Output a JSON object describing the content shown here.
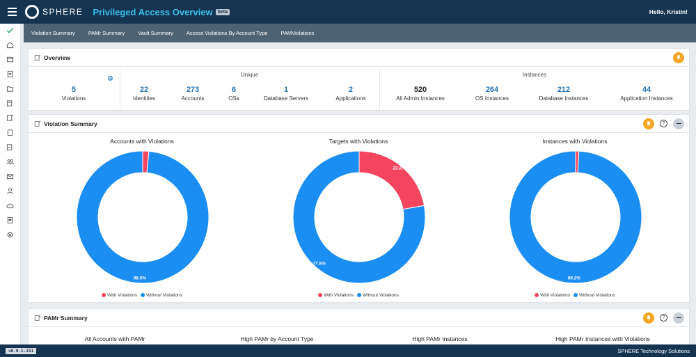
{
  "header": {
    "logo_text": "SPHERE",
    "title": "Privileged Access Overview",
    "badge": "beta",
    "greeting": "Hello, Kristin!"
  },
  "subnav": {
    "items": [
      {
        "label": "Violation Summary"
      },
      {
        "label": "PAMr Summary"
      },
      {
        "label": "Vault Summary"
      },
      {
        "label": "Access Violations By Account Type"
      },
      {
        "label": "PAMViolations"
      }
    ]
  },
  "sidebar": {
    "icons": [
      "check-icon",
      "home-icon",
      "table-icon",
      "document-icon",
      "folder-icon",
      "report-icon",
      "analytics-icon",
      "clipboard-icon",
      "task-icon",
      "users-icon",
      "mail-icon",
      "person-icon",
      "cloud-icon",
      "form-icon",
      "settings-icon"
    ],
    "active_color": "#27ae60"
  },
  "overview": {
    "title": "Overview",
    "violations": {
      "value": "5",
      "label": "Violations"
    },
    "unique": {
      "label": "Unique",
      "stats": [
        {
          "value": "22",
          "label": "Identities"
        },
        {
          "value": "273",
          "label": "Accounts"
        },
        {
          "value": "6",
          "label": "OSs"
        },
        {
          "value": "1",
          "label": "Database Servers"
        },
        {
          "value": "2",
          "label": "Applications"
        }
      ]
    },
    "instances": {
      "label": "Instances",
      "stats": [
        {
          "value": "520",
          "label": "All Admin Instances"
        },
        {
          "value": "264",
          "label": "OS Instances"
        },
        {
          "value": "212",
          "label": "Database Instances"
        },
        {
          "value": "44",
          "label": "Application Instances"
        }
      ]
    }
  },
  "violation_summary": {
    "title": "Violation Summary",
    "legend": {
      "with": "With Violations",
      "without": "Without Violations"
    },
    "colors": {
      "with": "#f4455f",
      "without": "#1a8ef2"
    }
  },
  "chart_data": [
    {
      "type": "pie",
      "title": "Accounts with Violations",
      "categories": [
        "With Violations",
        "Without Violations"
      ],
      "values": [
        1.5,
        98.5
      ],
      "labels": [
        "",
        "98.5%"
      ]
    },
    {
      "type": "pie",
      "title": "Targets with Violations",
      "categories": [
        "With Violations",
        "Without Violations"
      ],
      "values": [
        22.2,
        77.8
      ],
      "labels": [
        "22.2%",
        "77.8%"
      ]
    },
    {
      "type": "pie",
      "title": "Instances with Violations",
      "categories": [
        "With Violations",
        "Without Violations"
      ],
      "values": [
        0.8,
        99.2
      ],
      "labels": [
        "",
        "99.2%"
      ]
    }
  ],
  "pamr_summary": {
    "title": "PAMr Summary",
    "charts": [
      {
        "title": "All Accounts with PAMr"
      },
      {
        "title": "High PAMr by Account Type"
      },
      {
        "title": "High PAMr Instances"
      },
      {
        "title": "High PAMr Instances with Violations"
      }
    ]
  },
  "footer": {
    "version": "v6.0.1.151",
    "company": "SPHERE Technology Solutions"
  }
}
